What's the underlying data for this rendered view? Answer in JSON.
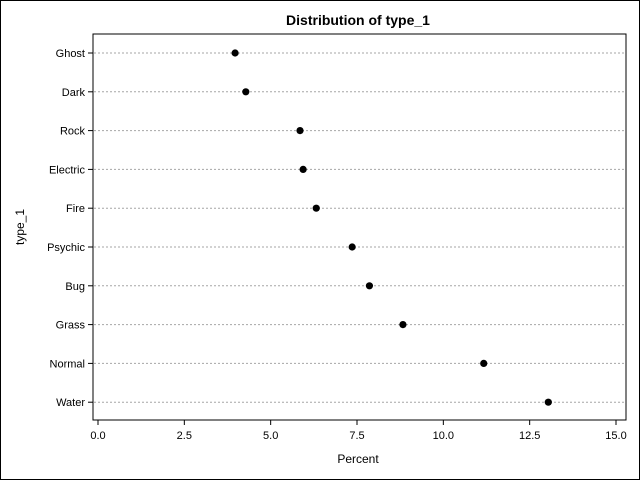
{
  "chart_data": {
    "type": "scatter",
    "title": "Distribution of type_1",
    "xlabel": "Percent",
    "ylabel": "type_1",
    "xlim": [
      0,
      15
    ],
    "xticks": [
      "0.0",
      "2.5",
      "5.0",
      "7.5",
      "10.0",
      "12.5",
      "15.0"
    ],
    "categories": [
      "Ghost",
      "Dark",
      "Rock",
      "Electric",
      "Fire",
      "Psychic",
      "Bug",
      "Grass",
      "Normal",
      "Water"
    ],
    "values": [
      3.97,
      4.28,
      5.85,
      5.94,
      6.32,
      7.36,
      7.86,
      8.83,
      11.17,
      13.04
    ],
    "grid": "horizontal dotted",
    "marker_color": "#000000",
    "grid_color": "#a6a6a6"
  }
}
